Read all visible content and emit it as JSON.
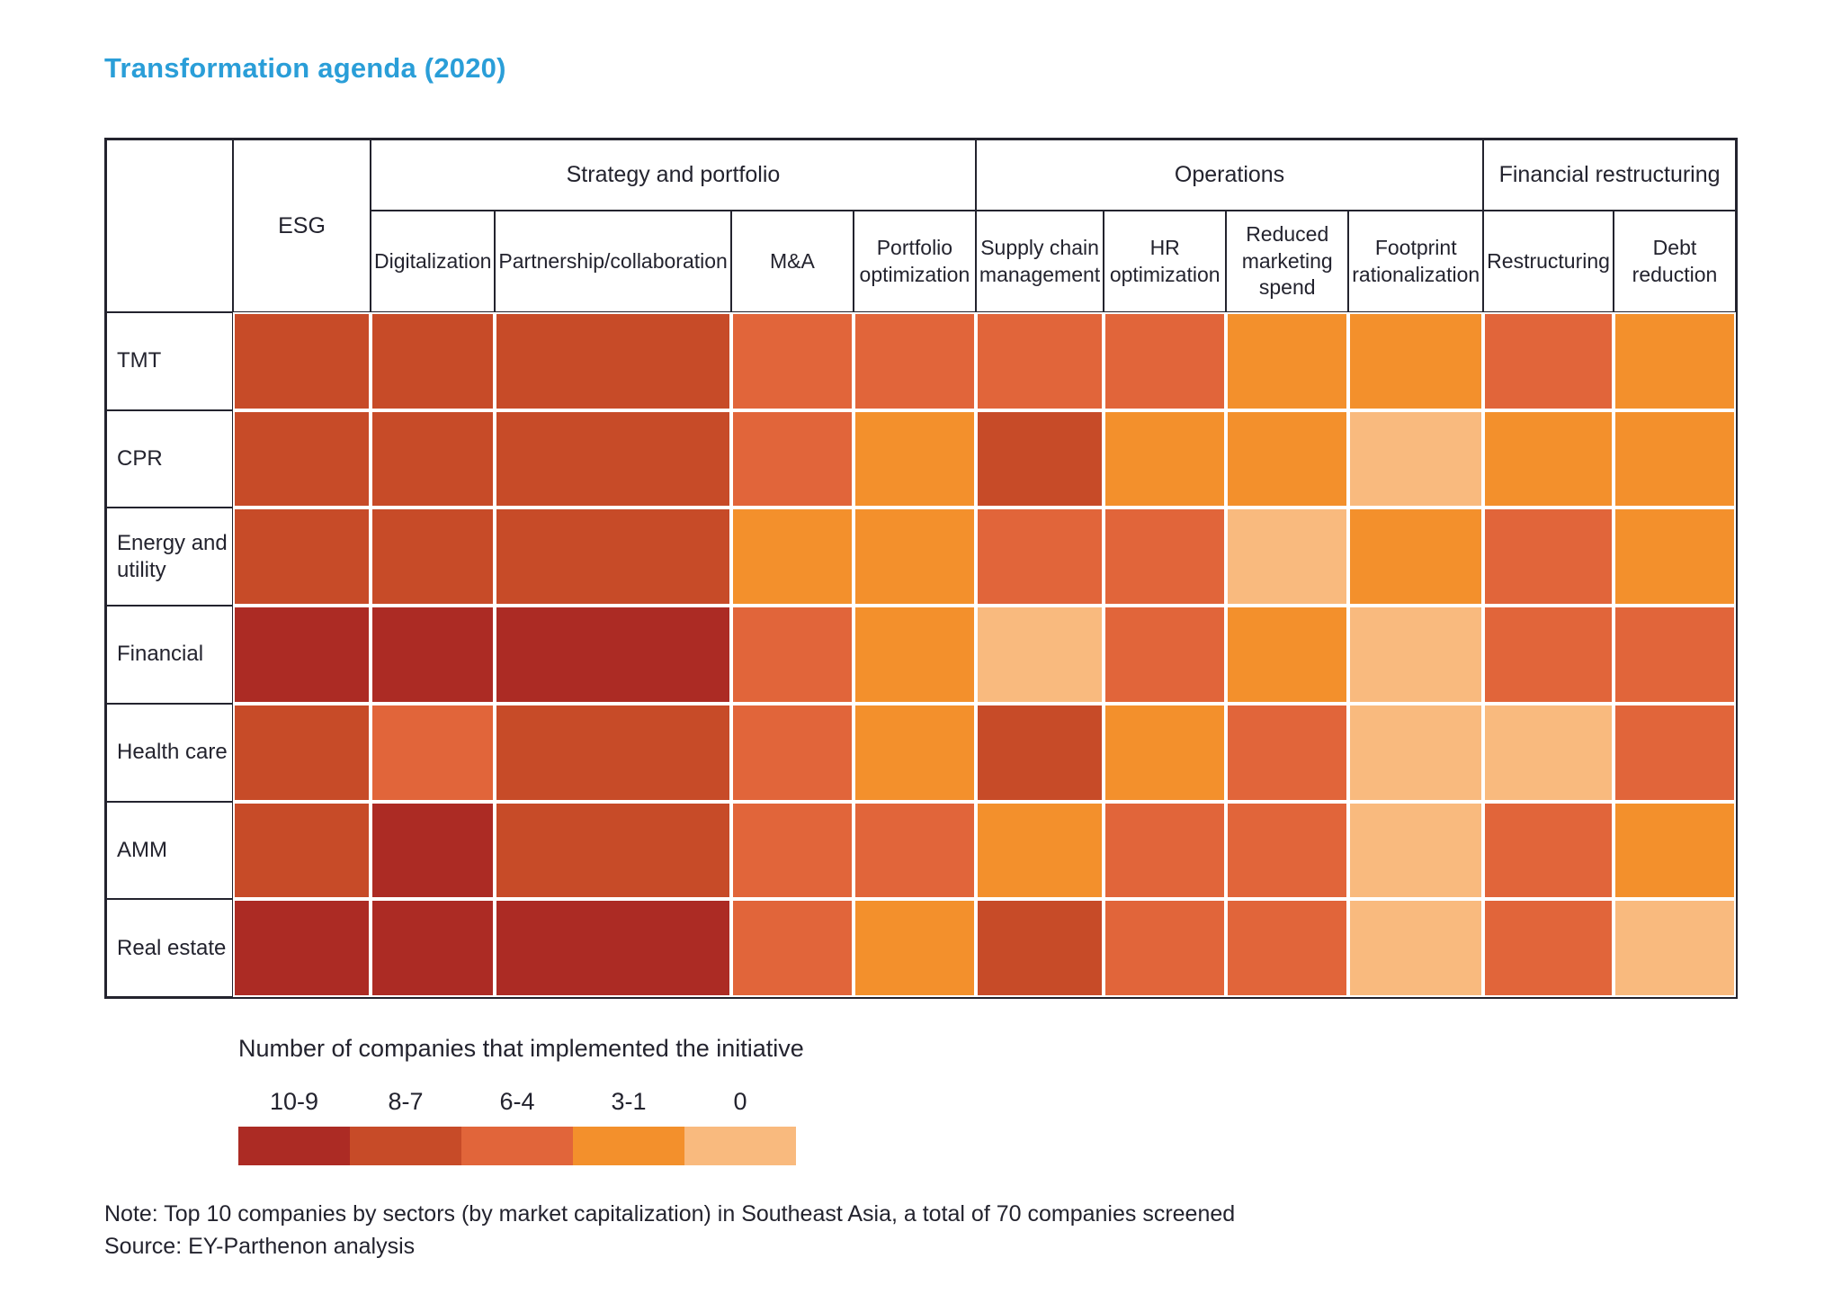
{
  "title": "Transformation agenda (2020)",
  "accent_color": "#2A9ED8",
  "chart_data": {
    "type": "heatmap",
    "title": "Transformation agenda (2020)",
    "rows": [
      "TMT",
      "CPR",
      "Energy and utility",
      "Financial",
      "Health care",
      "AMM",
      "Real estate"
    ],
    "columns": [
      "ESG",
      "Digitalization",
      "Partnership/collaboration",
      "M&A",
      "Portfolio optimization",
      "Supply chain management",
      "HR optimization",
      "Reduced marketing spend",
      "Footprint rationalization",
      "Restructuring",
      "Debt reduction"
    ],
    "column_groups": [
      {
        "label": "Strategy and portfolio",
        "start": 1,
        "span": 4
      },
      {
        "label": "Operations",
        "start": 5,
        "span": 4
      },
      {
        "label": "Financial restructuring",
        "start": 9,
        "span": 2
      }
    ],
    "values": [
      [
        "8-7",
        "8-7",
        "8-7",
        "6-4",
        "6-4",
        "6-4",
        "6-4",
        "3-1",
        "3-1",
        "6-4",
        "3-1"
      ],
      [
        "8-7",
        "8-7",
        "8-7",
        "6-4",
        "3-1",
        "8-7",
        "3-1",
        "3-1",
        "0",
        "3-1",
        "3-1"
      ],
      [
        "8-7",
        "8-7",
        "8-7",
        "3-1",
        "3-1",
        "6-4",
        "6-4",
        "0",
        "3-1",
        "6-4",
        "3-1"
      ],
      [
        "10-9",
        "10-9",
        "10-9",
        "6-4",
        "3-1",
        "0",
        "6-4",
        "3-1",
        "0",
        "6-4",
        "6-4"
      ],
      [
        "8-7",
        "6-4",
        "8-7",
        "6-4",
        "3-1",
        "8-7",
        "3-1",
        "6-4",
        "0",
        "0",
        "6-4"
      ],
      [
        "8-7",
        "10-9",
        "8-7",
        "6-4",
        "6-4",
        "3-1",
        "6-4",
        "6-4",
        "0",
        "6-4",
        "3-1"
      ],
      [
        "10-9",
        "10-9",
        "10-9",
        "6-4",
        "3-1",
        "8-7",
        "6-4",
        "6-4",
        "0",
        "6-4",
        "0"
      ]
    ],
    "legend": {
      "label": "Number of companies that implemented the initiative",
      "bins": [
        "10-9",
        "8-7",
        "6-4",
        "3-1",
        "0"
      ],
      "colors": [
        "#AC2B24",
        "#C74B28",
        "#E1653A",
        "#F3902C",
        "#F9BA7E"
      ]
    },
    "grid_line_color": "#ffffff",
    "border_color": "#23232e"
  },
  "note": "Note: Top 10 companies by sectors (by market capitalization) in Southeast Asia, a total of 70 companies screened",
  "source": "Source: EY-Parthenon analysis"
}
